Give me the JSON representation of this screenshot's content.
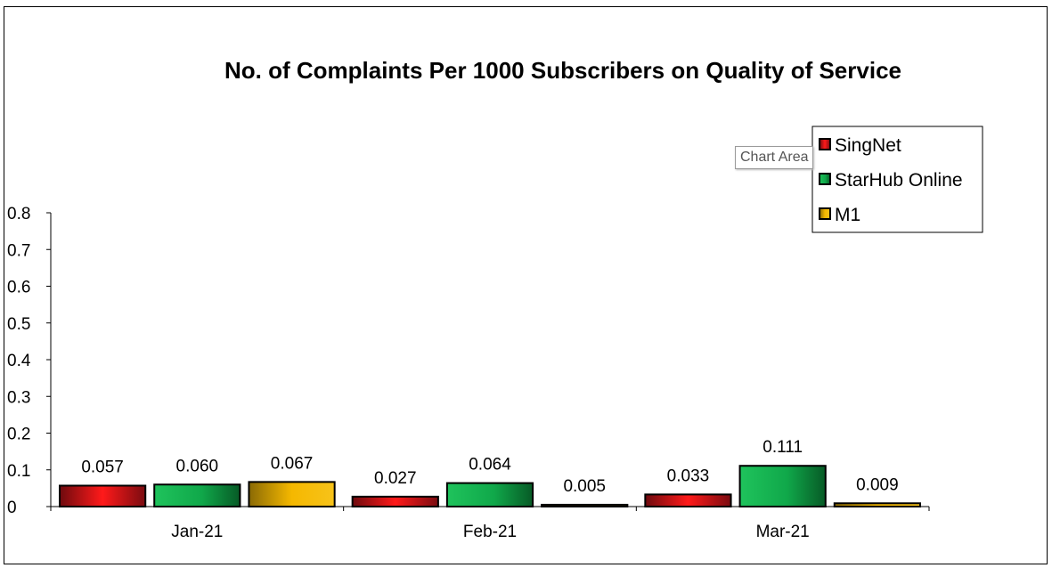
{
  "chart_data": {
    "type": "bar",
    "title": "No. of Complaints Per 1000 Subscribers on Quality of Service",
    "xlabel": "",
    "ylabel": "",
    "categories": [
      "Jan-21",
      "Feb-21",
      "Mar-21"
    ],
    "series": [
      {
        "name": "SingNet",
        "values": [
          0.057,
          0.027,
          0.033
        ],
        "labels": [
          "0.057",
          "0.027",
          "0.033"
        ],
        "color": "#e8141e"
      },
      {
        "name": "StarHub Online",
        "values": [
          0.06,
          0.064,
          0.111
        ],
        "labels": [
          "0.060",
          "0.064",
          "0.111"
        ],
        "color": "#16b04e"
      },
      {
        "name": "M1",
        "values": [
          0.067,
          0.005,
          0.009
        ],
        "labels": [
          "0.067",
          "0.005",
          "0.009"
        ],
        "color": "#f2b705"
      }
    ],
    "ylim": [
      0,
      0.8
    ],
    "yticks": [
      "0",
      "0.1",
      "0.2",
      "0.3",
      "0.4",
      "0.5",
      "0.6",
      "0.7",
      "0.8"
    ],
    "grid": false,
    "legend_position": "top-right"
  },
  "tooltip": {
    "text": "Chart Area"
  }
}
